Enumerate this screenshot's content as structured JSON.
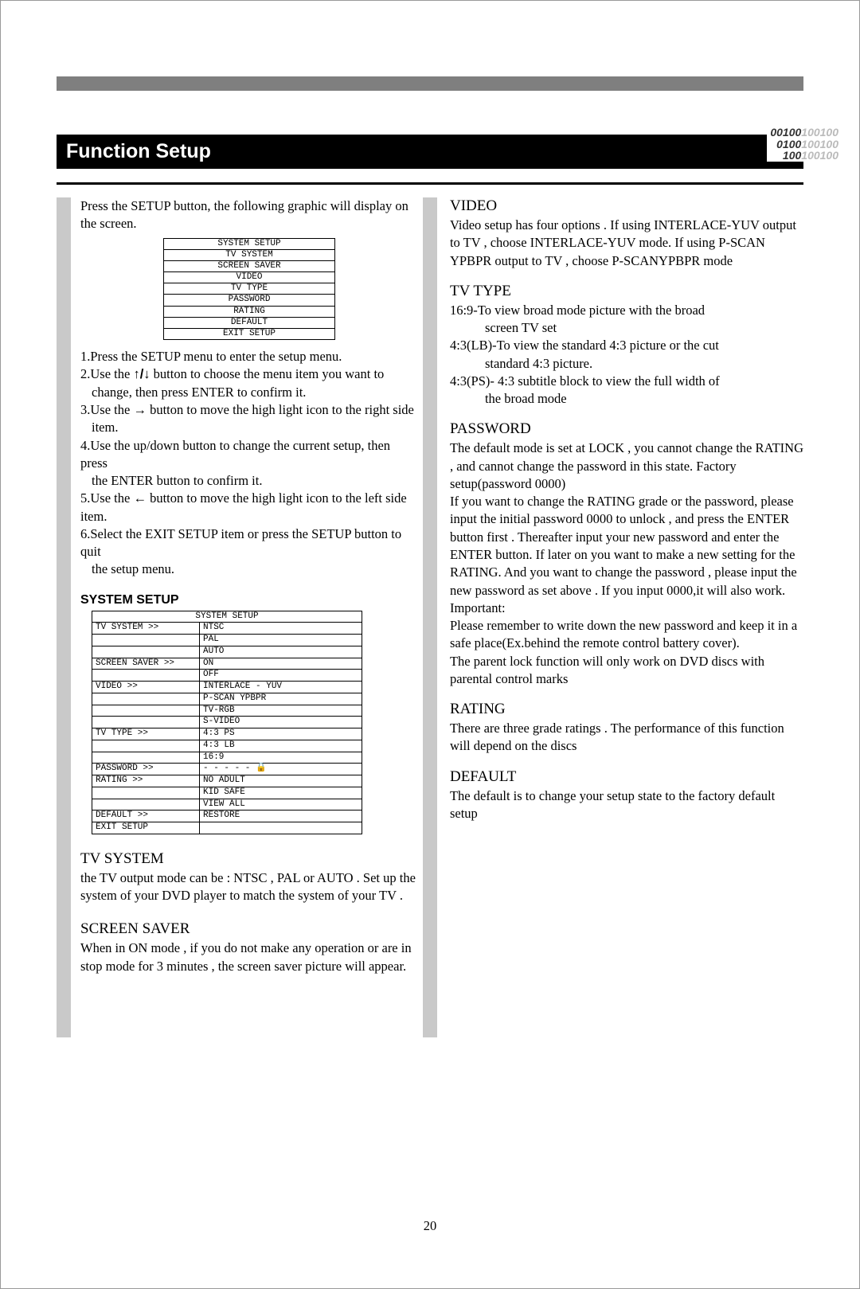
{
  "title": "Function Setup",
  "binary": {
    "l1a": "00100",
    "l1b": "100100",
    "l2a": "0100",
    "l2b": "100100",
    "l3a": "100",
    "l3b": "100100"
  },
  "intro": "Press the SETUP button, the following graphic will display on the screen.",
  "menu": [
    "SYSTEM SETUP",
    "TV SYSTEM",
    "SCREEN SAVER",
    "VIDEO",
    "TV TYPE",
    "PASSWORD",
    "RATING",
    "DEFAULT",
    "EXIT SETUP"
  ],
  "steps": {
    "s1": "1.Press the SETUP menu to enter the setup menu.",
    "s2a": "2.Use the ",
    "s2b": " button to choose the menu item you want to",
    "s2c": "change, then press ENTER to confirm it.",
    "s3a": "3.Use the ",
    "s3b": " button to move the high light icon to the right side",
    "s3c": "item.",
    "s4a": "4.Use the up/down button to change the current setup, then press",
    "s4b": "the ENTER button to confirm it.",
    "s5a": "5.Use the ",
    "s5b": " button to move the high light icon to the left side item.",
    "s6a": "6.Select the EXIT SETUP item or press the SETUP button to quit",
    "s6b": "the setup menu."
  },
  "system_setup_h": "SYSTEM SETUP",
  "setup": {
    "hdr": "SYSTEM SETUP",
    "tv_system": "TV SYSTEM >>",
    "ntsc": "NTSC",
    "pal": "PAL",
    "auto": "AUTO",
    "screen_saver": "SCREEN SAVER >>",
    "on": "ON",
    "off": "OFF",
    "video": "VIDEO >>",
    "interlace": "INTERLACE - YUV",
    "pscan": "P-SCAN  YPBPR",
    "tvrgb": "TV-RGB",
    "svideo": "S-VIDEO",
    "tv_type": "TV TYPE >>",
    "ps43": "4:3 PS",
    "lb43": "4:3 LB",
    "w169": "16:9",
    "password": "PASSWORD >>",
    "pwval": "- - - - -  🔒",
    "rating": "RATING >>",
    "noadult": "NO ADULT",
    "kidsafe": "KID SAFE",
    "viewall": "VIEW ALL",
    "default": "DEFAULT >>",
    "restore": "RESTORE",
    "exit": "EXIT SETUP"
  },
  "left": {
    "tv_h": "TV SYSTEM",
    "tv_p": "the TV output mode can be : NTSC , PAL   or AUTO . Set up the system of your DVD player to match the system of your TV .",
    "ss_h": "SCREEN SAVER",
    "ss_p": "When in ON mode , if you do not make any operation or are in stop mode for 3 minutes , the screen saver picture will appear."
  },
  "right": {
    "video_h": "VIDEO",
    "video_p": "Video setup has four options . If using INTERLACE-YUV output to TV , choose INTERLACE-YUV mode. If using P-SCAN YPBPR output to TV , choose P-SCANYPBPR mode",
    "tvtype_h": "TV TYPE",
    "tvtype_1a": "16:9-To view broad mode picture with the broad",
    "tvtype_1b": "screen TV set",
    "tvtype_2a": "4:3(LB)-To view the standard 4:3 picture or the cut",
    "tvtype_2b": "standard 4:3 picture.",
    "tvtype_3a": "4:3(PS)- 4:3 subtitle block to view the full width of",
    "tvtype_3b": "the broad mode",
    "pw_h": "PASSWORD",
    "pw_p1": "The  default mode is set at LOCK , you cannot change the RATING , and cannot change the password in this state. Factory setup(password 0000)",
    "pw_p2": "If you want to change the RATING grade or the password, please input the initial password 0000 to unlock , and press the ENTER button first . Thereafter input your new password  and enter the ENTER button. If later on you want to make a new setting for the RATING. And you want to change the password , please input the new password as set above . If you  input 0000,it will also work.",
    "pw_imp": "Important:",
    "pw_p3": "Please remember to write down the new password and keep it in a safe place(Ex.behind the remote control battery cover).",
    "pw_p4": "The parent lock function will only work on DVD discs with parental control marks",
    "rating_h": "RATING",
    "rating_p": "There are three grade ratings . The performance of this function will depend on the discs",
    "default_h": "DEFAULT",
    "default_p": "The default is to change your setup state to the factory default setup"
  },
  "page": "20"
}
